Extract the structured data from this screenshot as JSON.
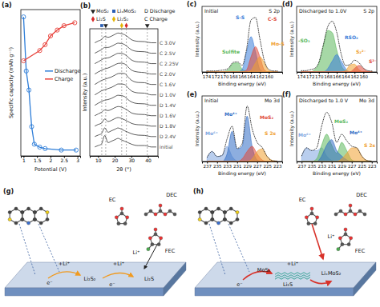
{
  "chart_data": [
    {
      "type": "line",
      "title": "(a)",
      "x_label": "Potential (V)",
      "y_label": "Specific capacity (mAh g⁻¹)",
      "xlim": [
        0.9,
        3.1
      ],
      "xticks": [
        1,
        1.5,
        2,
        2.5,
        3
      ],
      "ylim": [
        0,
        100
      ],
      "tick_labels": "x",
      "legend": "right",
      "marker": "circle",
      "series": [
        {
          "name": "Discharge",
          "color": "#2f7ed8",
          "x": [
            2.95,
            2.4,
            1.8,
            1.6,
            1.4,
            1.3,
            1.2,
            1.1,
            1.0
          ],
          "values": [
            4,
            4,
            5,
            6,
            8,
            20,
            45,
            58,
            95
          ]
        },
        {
          "name": "Charge",
          "color": "#e8413a",
          "x": [
            1.0,
            1.6,
            1.8,
            2.0,
            2.25,
            2.5,
            2.9
          ],
          "values": [
            65,
            72,
            76,
            82,
            86,
            89,
            91
          ]
        }
      ]
    },
    {
      "type": "line",
      "title": "(b)",
      "x_label": "2θ (°)",
      "y_label": "Intensity (a.u.)",
      "xlim": [
        5,
        46
      ],
      "xticks": [
        10,
        20,
        30,
        40
      ],
      "ylim": [
        0,
        8
      ],
      "tick_labels": "x",
      "color": "#4a4a4a",
      "x": [
        8,
        10,
        12,
        14,
        16,
        18,
        20,
        22,
        24,
        26,
        28,
        30,
        34,
        38,
        42,
        45
      ],
      "series": [
        {
          "name": "initial",
          "values": [
            2,
            2.5,
            3,
            6,
            3.5,
            4,
            4.5,
            5,
            4.5,
            4,
            3.5,
            3,
            2.5,
            2.5,
            2,
            2
          ]
        },
        {
          "name": "D 2.4V",
          "values": [
            2,
            2.5,
            3,
            5,
            3.5,
            4,
            4.5,
            5,
            4.6,
            4,
            3.5,
            3,
            2.5,
            2.4,
            2,
            2
          ]
        },
        {
          "name": "D 1.8V",
          "values": [
            2,
            2.6,
            3,
            4.5,
            3.6,
            4,
            4.6,
            5,
            4.7,
            4.2,
            3.6,
            3,
            2.5,
            2.4,
            2,
            2
          ]
        },
        {
          "name": "D 1.6V",
          "values": [
            2,
            2.6,
            3.2,
            4,
            3.8,
            4.2,
            4.8,
            5.2,
            5,
            4.5,
            3.8,
            3,
            2.5,
            2.4,
            2,
            2
          ]
        },
        {
          "name": "D 1.4V",
          "values": [
            2,
            2.7,
            3.3,
            3.8,
            4,
            4.4,
            5,
            5.5,
            5.4,
            5,
            4,
            3.2,
            2.6,
            2.5,
            2,
            2
          ]
        },
        {
          "name": "D 1.0V",
          "values": [
            2,
            2.7,
            3.4,
            3.8,
            4.2,
            4.6,
            5.2,
            5.8,
            5.8,
            5.6,
            4.5,
            3.4,
            2.7,
            2.6,
            2,
            2
          ]
        },
        {
          "name": "C 1.6V",
          "values": [
            2,
            2.7,
            3.4,
            3.8,
            4.2,
            4.6,
            5.2,
            5.8,
            5.9,
            5.8,
            4.6,
            3.5,
            2.7,
            2.6,
            2,
            2
          ]
        },
        {
          "name": "C 2.0V",
          "values": [
            2,
            2.7,
            3.3,
            3.8,
            4.1,
            4.6,
            5.2,
            5.7,
            5.8,
            5.5,
            4.5,
            3.4,
            2.7,
            2.5,
            2,
            2
          ]
        },
        {
          "name": "C 2.25V",
          "values": [
            2,
            2.6,
            3.3,
            3.9,
            4,
            4.5,
            5.1,
            5.6,
            5.6,
            5.2,
            4.3,
            3.3,
            2.6,
            2.5,
            2,
            2
          ]
        },
        {
          "name": "C 2.5V",
          "values": [
            2,
            2.6,
            3.2,
            4,
            4,
            4.4,
            5,
            5.5,
            5.4,
            5,
            4.1,
            3.2,
            2.6,
            2.5,
            2,
            2
          ]
        },
        {
          "name": "C 3.0V",
          "values": [
            2,
            2.6,
            3.1,
            4.2,
            3.9,
            4.3,
            4.9,
            5.4,
            5.2,
            4.8,
            4,
            3.1,
            2.5,
            2.4,
            2,
            2
          ]
        }
      ],
      "phases": [
        {
          "name": "MoS₂",
          "color": "#222222",
          "marker": "triangle-down",
          "positions": [
            14.6,
            39.6
          ]
        },
        {
          "name": "LiₓMoS₂",
          "color": "#2b5fb4",
          "marker": "square",
          "positions": [
            12.2
          ]
        },
        {
          "name": "Li₂S",
          "color": "#d62728",
          "marker": "diamond",
          "positions": [
            27
          ]
        },
        {
          "name": "Li₂S₂",
          "color": "#e3b505",
          "marker": "diamond",
          "positions": [
            24.2
          ]
        }
      ],
      "annotations": [
        "D Discharge",
        "C Charge"
      ]
    },
    {
      "type": "area",
      "title": "(c)",
      "annotations": [
        "Initial",
        "S 2p"
      ],
      "x_label": "Binding energy (eV)",
      "y_label": "Intensity (a.u.)",
      "xlim": [
        175,
        157
      ],
      "xticks": [
        174,
        172,
        170,
        168,
        166,
        164,
        162,
        160
      ],
      "ylim": [
        0,
        13
      ],
      "tick_labels": "x",
      "color": "#222222",
      "x": [
        174,
        173,
        172,
        171,
        170,
        169,
        168,
        167,
        166,
        165,
        164,
        163,
        162,
        161,
        160,
        159,
        158
      ],
      "values": [
        0.2,
        0.2,
        0.2,
        0.3,
        0.4,
        0.8,
        1.9,
        2.0,
        1.3,
        4.5,
        10.3,
        10.8,
        6.5,
        2.2,
        0.5,
        0.2,
        0.2
      ],
      "series": [
        {
          "name": "Sulfite",
          "color": "#5cb85c",
          "values": [
            0,
            0,
            0,
            0,
            0.1,
            0.6,
            1.7,
            1.8,
            0.6,
            0.1,
            0,
            0,
            0,
            0,
            0,
            0,
            0
          ]
        },
        {
          "name": "S-S",
          "color": "#3b7dd8",
          "values": [
            0,
            0,
            0,
            0,
            0,
            0,
            0,
            0,
            0.5,
            4,
            7,
            4,
            0.5,
            0,
            0,
            0,
            0
          ]
        },
        {
          "name": "C-S",
          "color": "#e04a3a",
          "values": [
            0,
            0,
            0,
            0,
            0,
            0,
            0,
            0,
            0,
            0.4,
            3,
            5,
            3,
            0.4,
            0,
            0,
            0
          ]
        },
        {
          "name": "Mo-S",
          "color": "#f0a030",
          "values": [
            0,
            0,
            0,
            0,
            0,
            0,
            0,
            0,
            0,
            0,
            0.3,
            1.8,
            3,
            1.8,
            0.3,
            0,
            0
          ]
        }
      ]
    },
    {
      "type": "area",
      "title": "(d)",
      "annotations": [
        "Discharged to 1.0V",
        "S 2p"
      ],
      "x_label": "Binding energy (eV)",
      "y_label": "Intensity (a.u.)",
      "xlim": [
        175,
        157
      ],
      "xticks": [
        174,
        172,
        170,
        168,
        166,
        164,
        162,
        160
      ],
      "ylim": [
        0,
        15
      ],
      "tick_labels": "x",
      "color": "#222222",
      "x": [
        174,
        173,
        172,
        171,
        170,
        169,
        168,
        167,
        166,
        165,
        164,
        163,
        162,
        161,
        160,
        159,
        158
      ],
      "values": [
        0.3,
        0.3,
        0.5,
        0.8,
        2.2,
        6.2,
        10.4,
        11.6,
        9.1,
        4.1,
        1.5,
        1.7,
        2.7,
        2.1,
        0.9,
        0.3,
        0.2
      ],
      "series": [
        {
          "name": "-SO₃",
          "color": "#5cb85c",
          "values": [
            0,
            0,
            0,
            0.5,
            2,
            6,
            9.5,
            9,
            5,
            1.5,
            0.3,
            0,
            0,
            0,
            0,
            0,
            0
          ]
        },
        {
          "name": "RSO₂",
          "color": "#3b7dd8",
          "values": [
            0,
            0,
            0,
            0,
            0,
            0,
            0.8,
            2.5,
            4,
            2.5,
            0.8,
            0,
            0,
            0,
            0,
            0,
            0
          ]
        },
        {
          "name": "S₂²⁻",
          "color": "#f0a030",
          "values": [
            0,
            0,
            0,
            0,
            0,
            0,
            0,
            0,
            0,
            0,
            0.3,
            1.6,
            1.8,
            0.5,
            0,
            0,
            0
          ]
        },
        {
          "name": "S²⁻",
          "color": "#e04a3a",
          "values": [
            0,
            0,
            0,
            0,
            0,
            0,
            0,
            0,
            0,
            0,
            0,
            0,
            0.8,
            1.5,
            0.8,
            0.1,
            0
          ]
        }
      ]
    },
    {
      "type": "area",
      "title": "(e)",
      "annotations": [
        "Initial",
        "Mo 3d"
      ],
      "x_label": "Binding energy (eV)",
      "y_label": "Intensity (a.u.)",
      "xlim": [
        238,
        222
      ],
      "xticks": [
        237,
        235,
        233,
        231,
        229,
        227,
        225,
        223
      ],
      "ylim": [
        0,
        13
      ],
      "tick_labels": "x",
      "color": "#222222",
      "x": [
        237,
        236,
        235,
        234,
        233,
        232,
        231,
        230,
        229,
        228,
        227,
        226,
        225,
        224,
        223
      ],
      "values": [
        0.8,
        2.0,
        1.0,
        1.2,
        4.5,
        7.0,
        2.6,
        3.5,
        11.0,
        6.5,
        3.8,
        2.8,
        1.0,
        0.2,
        0.1
      ],
      "series": [
        {
          "name": "Mo⁶⁺",
          "color": "#7fa6e0",
          "values": [
            0.8,
            2,
            1,
            1.2,
            3,
            1,
            0.1,
            0,
            0,
            0,
            0,
            0,
            0,
            0,
            0
          ]
        },
        {
          "name": "Mo⁴⁺",
          "color": "#2f6cc4",
          "values": [
            0,
            0,
            0,
            0,
            1.5,
            6,
            2.5,
            3,
            9,
            3,
            0.3,
            0,
            0,
            0,
            0
          ]
        },
        {
          "name": "MoS₂",
          "color": "#e04a3a",
          "values": [
            0,
            0,
            0,
            0,
            0,
            0,
            0,
            0.5,
            2,
            3,
            1.5,
            0.3,
            0,
            0,
            0
          ]
        },
        {
          "name": "S 2s",
          "color": "#f0a030",
          "values": [
            0,
            0,
            0,
            0,
            0,
            0,
            0,
            0,
            0,
            0.5,
            2,
            2.5,
            1,
            0.2,
            0
          ]
        }
      ]
    },
    {
      "type": "area",
      "title": "(f)",
      "annotations": [
        "Discharged to 1.0 V",
        "Mo 3d"
      ],
      "x_label": "Binding energy (eV)",
      "y_label": "Intensity (a.u.)",
      "xlim": [
        238,
        222
      ],
      "xticks": [
        237,
        235,
        233,
        231,
        229,
        227,
        225,
        223
      ],
      "ylim": [
        0,
        12
      ],
      "tick_labels": "x",
      "color": "#222222",
      "x": [
        237,
        236,
        235,
        234,
        233,
        232,
        231,
        230,
        229,
        228,
        227,
        226,
        225,
        224,
        223
      ],
      "values": [
        1.0,
        2.5,
        2.0,
        2.5,
        6.5,
        9.0,
        7.2,
        3.5,
        5.0,
        3.8,
        2.8,
        2.5,
        1.0,
        0.2,
        0.1
      ],
      "series": [
        {
          "name": "Mo⁶⁺",
          "color": "#7fa6e0",
          "values": [
            1,
            2.5,
            2,
            2,
            2.5,
            1,
            0.2,
            0,
            0,
            0,
            0,
            0,
            0,
            0,
            0
          ]
        },
        {
          "name": "MoS₂",
          "color": "#5cb85c",
          "values": [
            0,
            0,
            0,
            0.5,
            3,
            5,
            3,
            1.5,
            3.5,
            2,
            0.3,
            0,
            0,
            0,
            0
          ]
        },
        {
          "name": "Mo⁴⁺",
          "color": "#2f6cc4",
          "values": [
            0,
            0,
            0,
            0,
            1,
            3,
            4,
            2,
            1,
            0.3,
            0,
            0,
            0,
            0,
            0
          ]
        },
        {
          "name": "S 2s",
          "color": "#f0a030",
          "values": [
            0,
            0,
            0,
            0,
            0,
            0,
            0,
            0,
            0.5,
            1.5,
            2.5,
            2.5,
            1,
            0.2,
            0
          ]
        }
      ]
    }
  ],
  "diagrams": [
    {
      "title": "(g)",
      "labels": [
        "EC",
        "DEC",
        "FEC",
        "Li⁺",
        "+Li⁺",
        "e⁻",
        "Li₂S₂",
        "+Li⁺",
        "e⁻",
        "Li₂S"
      ]
    },
    {
      "title": "(h)",
      "labels": [
        "EC",
        "DEC",
        "FEC",
        "Li⁺",
        "MoS₂",
        "LiₓMoS₂",
        "e⁻",
        "+Li⁺",
        "Li₂S"
      ]
    }
  ]
}
